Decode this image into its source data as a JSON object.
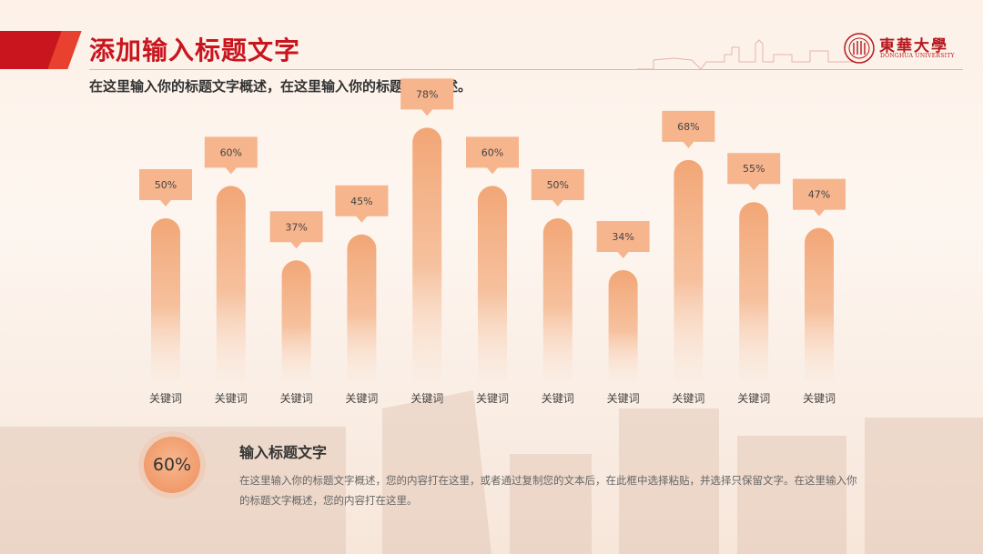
{
  "header": {
    "title": "添加输入标题文字",
    "subtitle": "在这里输入你的标题文字概述，在这里输入你的标题文字概述。",
    "logo_cn": "東華大學",
    "logo_en": "DONGHUA UNIVERSITY"
  },
  "colors": {
    "accent_red": "#c9151e",
    "bar_orange": "#f2a676",
    "callout_orange": "#f6b58c"
  },
  "chart_data": {
    "type": "bar",
    "categories": [
      "关键词",
      "关键词",
      "关键词",
      "关键词",
      "关键词",
      "关键词",
      "关键词",
      "关键词",
      "关键词",
      "关键词",
      "关键词"
    ],
    "values": [
      50,
      60,
      37,
      45,
      78,
      60,
      50,
      34,
      68,
      55,
      47
    ],
    "value_labels": [
      "50%",
      "60%",
      "37%",
      "45%",
      "78%",
      "60%",
      "50%",
      "34%",
      "68%",
      "55%",
      "47%"
    ],
    "unit": "%",
    "ylim": [
      0,
      100
    ],
    "grid": false,
    "legend": "none"
  },
  "summary": {
    "percent": "60%",
    "title": "输入标题文字",
    "body": "在这里输入你的标题文字概述，您的内容打在这里，或者通过复制您的文本后，在此框中选择粘贴，并选择只保留文字。在这里输入你的标题文字概述，您的内容打在这里。"
  }
}
